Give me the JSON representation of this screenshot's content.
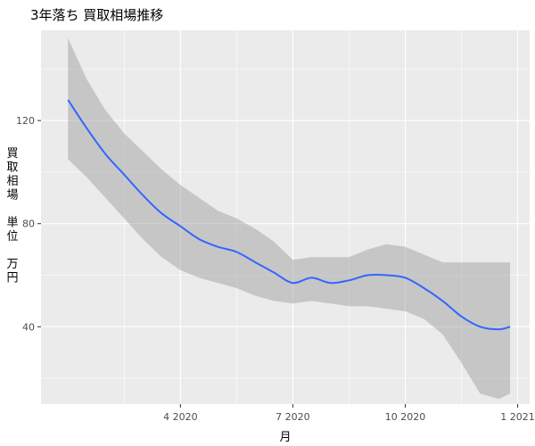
{
  "chart_data": {
    "type": "line",
    "title": "3年落ち 買取相場推移",
    "xlabel": "月",
    "ylabel": "買取相場 単位 万円",
    "ylabel_lines": [
      "買",
      "取",
      "相",
      "場",
      "",
      "単",
      "位",
      "",
      "万",
      "円"
    ],
    "x_ticks": [
      {
        "label": "4 2020",
        "month": 3
      },
      {
        "label": "7 2020",
        "month": 6
      },
      {
        "label": "10 2020",
        "month": 9
      },
      {
        "label": "1 2021",
        "month": 12
      }
    ],
    "y_ticks": [
      40,
      80,
      120
    ],
    "xlim_months": [
      -0.72,
      12.32
    ],
    "ylim": [
      10,
      155
    ],
    "grid": true,
    "smoothing_band": true,
    "series": [
      {
        "color": "#3366FF",
        "x_months": [
          0.0,
          0.5,
          1.0,
          1.5,
          2.0,
          2.5,
          3.0,
          3.5,
          4.0,
          4.5,
          5.0,
          5.5,
          6.0,
          6.5,
          7.0,
          7.5,
          8.0,
          8.5,
          9.0,
          9.5,
          10.0,
          10.5,
          11.0,
          11.5,
          11.8
        ],
        "y": [
          128,
          117,
          107,
          99,
          91,
          84,
          79,
          74,
          71,
          69,
          65,
          61,
          57,
          59,
          57,
          58,
          60,
          60,
          59,
          55,
          50,
          44,
          40,
          39,
          40
        ],
        "band_lower": [
          105,
          98,
          90,
          82,
          74,
          67,
          62,
          59,
          57,
          55,
          52,
          50,
          49,
          50,
          49,
          48,
          48,
          47,
          46,
          43,
          37,
          26,
          14,
          12,
          14
        ],
        "band_upper": [
          152,
          136,
          124,
          115,
          108,
          101,
          95,
          90,
          85,
          82,
          78,
          73,
          66,
          67,
          67,
          67,
          70,
          72,
          71,
          68,
          65,
          65,
          65,
          65,
          65
        ]
      }
    ]
  }
}
